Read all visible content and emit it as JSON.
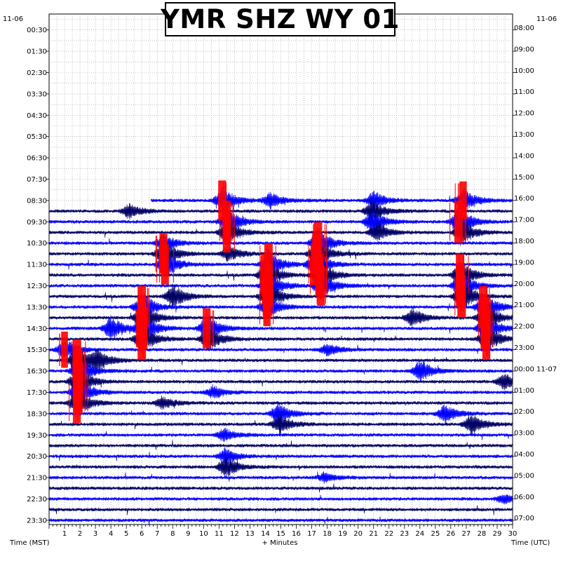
{
  "title": "YMR SHZ WY 01",
  "date_left": "11-06",
  "date_right": "11-06",
  "xlabel_left": "Time (MST)",
  "xlabel_center": "+ Minutes",
  "xlabel_right": "Time (UTC)",
  "colors": {
    "background": "#ffffff",
    "plot_background": "#ffffff",
    "grid": "#9a9a9a",
    "trace_dark": "#000066",
    "trace_blue": "#0000ff",
    "clip": "#ff0000",
    "text": "#000000"
  },
  "chart_data": {
    "type": "helicorder",
    "title": "YMR SHZ WY 01",
    "x_unit": "minutes",
    "xlim": [
      0,
      30
    ],
    "x_ticks": [
      1,
      2,
      3,
      4,
      5,
      6,
      7,
      8,
      9,
      10,
      11,
      12,
      13,
      14,
      15,
      16,
      17,
      18,
      19,
      20,
      21,
      22,
      23,
      24,
      25,
      26,
      27,
      28,
      29,
      30
    ],
    "grid": true,
    "left_labels": [
      "00:30",
      "01:30",
      "02:30",
      "03:30",
      "04:30",
      "05:30",
      "06:30",
      "07:30",
      "08:30",
      "09:30",
      "10:30",
      "11:30",
      "12:30",
      "13:30",
      "14:30",
      "15:30",
      "16:30",
      "17:30",
      "18:30",
      "19:30",
      "20:30",
      "21:30",
      "22:30",
      "23:30"
    ],
    "right_labels": [
      "08:00",
      "09:00",
      "10:00",
      "11:00",
      "12:00",
      "13:00",
      "14:00",
      "15:00",
      "16:00",
      "17:00",
      "18:00",
      "19:00",
      "20:00",
      "21:00",
      "22:00",
      "23:00",
      "00:00 11-07",
      "01:00",
      "02:00",
      "03:00",
      "04:00",
      "05:00",
      "06:00",
      "07:00"
    ],
    "line_count": 48,
    "first_trace_line": 17,
    "events": [
      {
        "line": 17,
        "minute": 11.2,
        "amp": 0.9,
        "clip": true
      },
      {
        "line": 17,
        "minute": 14.3,
        "amp": 0.5
      },
      {
        "line": 17,
        "minute": 21.0,
        "amp": 0.6
      },
      {
        "line": 17,
        "minute": 26.8,
        "amp": 0.8,
        "clip": true
      },
      {
        "line": 18,
        "minute": 5.2,
        "amp": 0.5
      },
      {
        "line": 18,
        "minute": 20.9,
        "amp": 0.7
      },
      {
        "line": 19,
        "minute": 11.5,
        "amp": 1.0,
        "clip": true
      },
      {
        "line": 19,
        "minute": 20.9,
        "amp": 0.8
      },
      {
        "line": 19,
        "minute": 26.5,
        "amp": 1.0,
        "clip": true
      },
      {
        "line": 20,
        "minute": 11.5,
        "amp": 0.9,
        "clip": true
      },
      {
        "line": 20,
        "minute": 21.2,
        "amp": 0.6
      },
      {
        "line": 20,
        "minute": 26.7,
        "amp": 0.8
      },
      {
        "line": 21,
        "minute": 17.4,
        "amp": 1.0,
        "clip": true
      },
      {
        "line": 21,
        "minute": 7.4,
        "amp": 0.6
      },
      {
        "line": 22,
        "minute": 17.3,
        "amp": 1.0,
        "clip": true
      },
      {
        "line": 22,
        "minute": 7.4,
        "amp": 0.9,
        "clip": true
      },
      {
        "line": 22,
        "minute": 11.6,
        "amp": 0.5
      },
      {
        "line": 23,
        "minute": 14.2,
        "amp": 1.0,
        "clip": true
      },
      {
        "line": 23,
        "minute": 17.2,
        "amp": 1.0,
        "clip": true
      },
      {
        "line": 23,
        "minute": 7.5,
        "amp": 0.9,
        "clip": true
      },
      {
        "line": 24,
        "minute": 14.0,
        "amp": 1.0,
        "clip": true
      },
      {
        "line": 24,
        "minute": 17.5,
        "amp": 1.0,
        "clip": true
      },
      {
        "line": 24,
        "minute": 26.6,
        "amp": 1.0,
        "clip": true
      },
      {
        "line": 25,
        "minute": 14.2,
        "amp": 1.0,
        "clip": true
      },
      {
        "line": 25,
        "minute": 17.6,
        "amp": 0.9,
        "clip": true
      },
      {
        "line": 25,
        "minute": 26.6,
        "amp": 1.0,
        "clip": true
      },
      {
        "line": 26,
        "minute": 8.0,
        "amp": 0.8
      },
      {
        "line": 26,
        "minute": 14.1,
        "amp": 1.0,
        "clip": true
      },
      {
        "line": 26,
        "minute": 26.7,
        "amp": 1.0,
        "clip": true
      },
      {
        "line": 27,
        "minute": 6.0,
        "amp": 1.0,
        "clip": true
      },
      {
        "line": 27,
        "minute": 28.1,
        "amp": 1.0,
        "clip": true
      },
      {
        "line": 27,
        "minute": 14.1,
        "amp": 0.8,
        "clip": true
      },
      {
        "line": 28,
        "minute": 6.0,
        "amp": 1.0,
        "clip": true
      },
      {
        "line": 28,
        "minute": 28.2,
        "amp": 1.0,
        "clip": true
      },
      {
        "line": 28,
        "minute": 23.5,
        "amp": 0.6
      },
      {
        "line": 29,
        "minute": 4.0,
        "amp": 0.8
      },
      {
        "line": 29,
        "minute": 6.1,
        "amp": 1.0,
        "clip": true
      },
      {
        "line": 29,
        "minute": 10.2,
        "amp": 0.9,
        "clip": true
      },
      {
        "line": 29,
        "minute": 28.2,
        "amp": 1.0,
        "clip": true
      },
      {
        "line": 30,
        "minute": 6.0,
        "amp": 1.0,
        "clip": true
      },
      {
        "line": 30,
        "minute": 10.3,
        "amp": 0.9
      },
      {
        "line": 30,
        "minute": 28.3,
        "amp": 0.9,
        "clip": true
      },
      {
        "line": 31,
        "minute": 1.0,
        "amp": 0.7,
        "clip": true
      },
      {
        "line": 31,
        "minute": 18.0,
        "amp": 0.4
      },
      {
        "line": 32,
        "minute": 1.8,
        "amp": 1.0,
        "clip": true
      },
      {
        "line": 32,
        "minute": 3.1,
        "amp": 0.6
      },
      {
        "line": 33,
        "minute": 1.9,
        "amp": 1.0,
        "clip": true
      },
      {
        "line": 33,
        "minute": 24.0,
        "amp": 0.7
      },
      {
        "line": 34,
        "minute": 1.8,
        "amp": 1.0,
        "clip": true
      },
      {
        "line": 34,
        "minute": 29.4,
        "amp": 0.5
      },
      {
        "line": 35,
        "minute": 1.9,
        "amp": 1.0,
        "clip": true
      },
      {
        "line": 35,
        "minute": 10.6,
        "amp": 0.4
      },
      {
        "line": 36,
        "minute": 1.8,
        "amp": 0.9,
        "clip": true
      },
      {
        "line": 36,
        "minute": 7.3,
        "amp": 0.4
      },
      {
        "line": 37,
        "minute": 14.8,
        "amp": 0.7
      },
      {
        "line": 37,
        "minute": 25.6,
        "amp": 0.6
      },
      {
        "line": 38,
        "minute": 14.9,
        "amp": 0.6
      },
      {
        "line": 38,
        "minute": 27.3,
        "amp": 0.7
      },
      {
        "line": 39,
        "minute": 11.3,
        "amp": 0.4
      },
      {
        "line": 41,
        "minute": 11.4,
        "amp": 0.5
      },
      {
        "line": 42,
        "minute": 11.4,
        "amp": 0.7
      },
      {
        "line": 43,
        "minute": 17.8,
        "amp": 0.3
      },
      {
        "line": 45,
        "minute": 29.4,
        "amp": 0.3
      }
    ]
  }
}
